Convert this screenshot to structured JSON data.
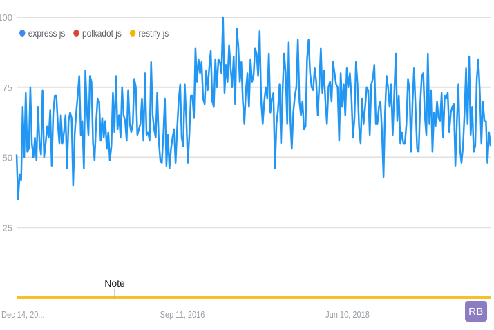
{
  "legend": [
    {
      "name": "express js",
      "color": "#4285f4"
    },
    {
      "name": "polkadot js",
      "color": "#db4437"
    },
    {
      "name": "restify js",
      "color": "#f4b400"
    }
  ],
  "note_label": "Note",
  "avatar_label": "RB",
  "chart_data": {
    "type": "line",
    "yticks": [
      25,
      50,
      75,
      100
    ],
    "ylim": [
      0,
      100
    ],
    "xticks": [
      "Dec 14, 20...",
      "Sep 11, 2016",
      "Jun 10, 2018"
    ],
    "grid": true,
    "legend_position": "top-left",
    "series": [
      {
        "name": "express js",
        "color": "#2196f3",
        "values": [
          51,
          35,
          44,
          42,
          68,
          50,
          73,
          52,
          53,
          75,
          55,
          50,
          57,
          49,
          68,
          55,
          51,
          74,
          50,
          55,
          61,
          57,
          67,
          47,
          66,
          72,
          72,
          62,
          55,
          65,
          55,
          59,
          65,
          46,
          63,
          66,
          64,
          40,
          58,
          66,
          72,
          79,
          58,
          63,
          46,
          81,
          67,
          58,
          79,
          77,
          55,
          49,
          62,
          71,
          70,
          56,
          64,
          57,
          63,
          53,
          59,
          49,
          54,
          73,
          59,
          79,
          60,
          65,
          57,
          75,
          65,
          63,
          56,
          74,
          62,
          59,
          62,
          78,
          75,
          58,
          60,
          62,
          71,
          56,
          80,
          58,
          59,
          56,
          84,
          65,
          60,
          57,
          73,
          56,
          49,
          48,
          58,
          71,
          47,
          58,
          46,
          53,
          57,
          60,
          48,
          60,
          70,
          76,
          57,
          54,
          76,
          64,
          48,
          58,
          72,
          72,
          64,
          89,
          77,
          85,
          80,
          84,
          71,
          69,
          81,
          74,
          82,
          88,
          70,
          68,
          85,
          75,
          85,
          84,
          80,
          100,
          73,
          83,
          77,
          90,
          82,
          75,
          86,
          69,
          96,
          90,
          77,
          84,
          70,
          62,
          74,
          80,
          68,
          85,
          77,
          79,
          89,
          87,
          79,
          95,
          70,
          62,
          70,
          75,
          71,
          87,
          66,
          71,
          73,
          46,
          62,
          67,
          76,
          55,
          74,
          87,
          80,
          62,
          91,
          64,
          53,
          66,
          72,
          75,
          92,
          70,
          65,
          70,
          60,
          61,
          85,
          92,
          80,
          75,
          74,
          82,
          77,
          65,
          76,
          89,
          73,
          81,
          70,
          62,
          75,
          77,
          70,
          84,
          80,
          76,
          75,
          56,
          80,
          68,
          76,
          65,
          82,
          75,
          80,
          72,
          57,
          64,
          84,
          76,
          61,
          55,
          71,
          62,
          68,
          75,
          74,
          58,
          76,
          78,
          83,
          62,
          62,
          68,
          70,
          59,
          43,
          66,
          79,
          75,
          68,
          76,
          58,
          72,
          87,
          63,
          72,
          55,
          59,
          55,
          55,
          62,
          78,
          74,
          52,
          70,
          82,
          67,
          53,
          52,
          69,
          79,
          80,
          65,
          58,
          87,
          62,
          74,
          52,
          66,
          61,
          70,
          64,
          63,
          73,
          57,
          72,
          71,
          73,
          59,
          66,
          68,
          69,
          47,
          63,
          76,
          53,
          48,
          54,
          66,
          82,
          62,
          86,
          58,
          68,
          52,
          54,
          78,
          85,
          73,
          55,
          70,
          63,
          63,
          48,
          59,
          54
        ]
      }
    ]
  }
}
